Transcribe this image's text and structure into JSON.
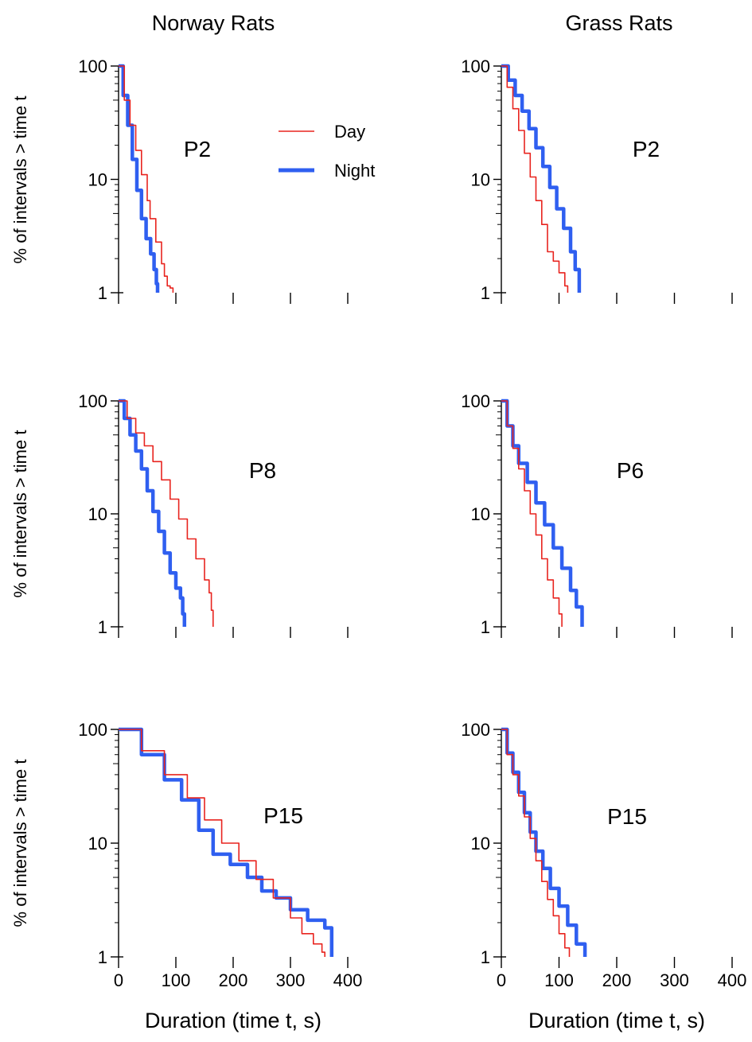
{
  "columns": [
    "Norway Rats",
    "Grass Rats"
  ],
  "legend": [
    {
      "label": "Day",
      "color": "#e8241f"
    },
    {
      "label": "Night",
      "color": "#2f5ff0"
    }
  ],
  "chart_data": [
    {
      "type": "line",
      "column": "Norway Rats",
      "title": "P2",
      "ylabel": "% of intervals > time t",
      "xlabel": "",
      "xlim": [
        0,
        400
      ],
      "ylim": [
        1,
        100
      ],
      "yscale": "log",
      "yticks": [
        "1",
        "10",
        "100"
      ],
      "xticks": [],
      "series": [
        {
          "name": "Day",
          "x": [
            0,
            10,
            20,
            30,
            40,
            50,
            55,
            65,
            75,
            80,
            85,
            90,
            95
          ],
          "y": [
            100,
            50,
            30,
            18,
            11,
            6.5,
            4.5,
            2.8,
            1.8,
            1.4,
            1.15,
            1.1,
            1.0
          ]
        },
        {
          "name": "Night",
          "x": [
            0,
            8,
            16,
            24,
            32,
            40,
            48,
            56,
            62,
            66,
            68
          ],
          "y": [
            100,
            55,
            30,
            15,
            8,
            4.5,
            3,
            2.2,
            1.6,
            1.2,
            1.0
          ]
        }
      ]
    },
    {
      "type": "line",
      "column": "Grass Rats",
      "title": "P2",
      "ylabel": "",
      "xlabel": "",
      "xlim": [
        0,
        400
      ],
      "ylim": [
        1,
        100
      ],
      "yscale": "log",
      "yticks": [
        "1",
        "10",
        "100"
      ],
      "xticks": [],
      "series": [
        {
          "name": "Day",
          "x": [
            0,
            10,
            20,
            30,
            40,
            50,
            60,
            70,
            80,
            90,
            100,
            110,
            115
          ],
          "y": [
            100,
            65,
            42,
            27,
            17,
            10.5,
            6.5,
            4,
            2.3,
            1.9,
            1.5,
            1.15,
            1.0
          ]
        },
        {
          "name": "Night",
          "x": [
            0,
            12,
            24,
            36,
            48,
            60,
            72,
            84,
            96,
            108,
            120,
            128,
            135
          ],
          "y": [
            100,
            75,
            55,
            40,
            28,
            19,
            13,
            8.5,
            5.5,
            3.7,
            2.3,
            1.6,
            1.0
          ]
        }
      ]
    },
    {
      "type": "line",
      "column": "Norway Rats",
      "title": "P8",
      "ylabel": "% of intervals > time t",
      "xlabel": "",
      "xlim": [
        0,
        400
      ],
      "ylim": [
        1,
        100
      ],
      "yscale": "log",
      "yticks": [
        "1",
        "10",
        "100"
      ],
      "xticks": [],
      "series": [
        {
          "name": "Day",
          "x": [
            0,
            15,
            30,
            45,
            60,
            75,
            90,
            105,
            120,
            135,
            150,
            158,
            162,
            165
          ],
          "y": [
            100,
            70,
            52,
            40,
            29,
            20,
            13.5,
            9,
            6,
            4,
            2.6,
            2,
            1.4,
            1.0
          ]
        },
        {
          "name": "Night",
          "x": [
            0,
            10,
            20,
            30,
            40,
            50,
            60,
            70,
            80,
            90,
            100,
            108,
            112,
            115
          ],
          "y": [
            100,
            70,
            50,
            36,
            25,
            16,
            10.5,
            7,
            4.5,
            3,
            2.2,
            1.8,
            1.3,
            1.0
          ]
        }
      ]
    },
    {
      "type": "line",
      "column": "Grass Rats",
      "title": "P6",
      "ylabel": "",
      "xlabel": "",
      "xlim": [
        0,
        400
      ],
      "ylim": [
        1,
        100
      ],
      "yscale": "log",
      "yticks": [
        "1",
        "10",
        "100"
      ],
      "xticks": [],
      "series": [
        {
          "name": "Day",
          "x": [
            0,
            10,
            20,
            30,
            40,
            50,
            60,
            70,
            80,
            90,
            100,
            105
          ],
          "y": [
            100,
            60,
            38,
            25,
            16,
            10,
            6.5,
            4,
            2.6,
            1.8,
            1.3,
            1.0
          ]
        },
        {
          "name": "Night",
          "x": [
            0,
            10,
            20,
            30,
            45,
            60,
            75,
            90,
            105,
            120,
            130,
            140
          ],
          "y": [
            100,
            60,
            40,
            28,
            19,
            12.5,
            8,
            5,
            3.3,
            2.1,
            1.5,
            1.0
          ]
        }
      ]
    },
    {
      "type": "line",
      "column": "Norway Rats",
      "title": "P15",
      "ylabel": "% of intervals > time t",
      "xlabel": "Duration (time t, s)",
      "xlim": [
        0,
        400
      ],
      "ylim": [
        1,
        100
      ],
      "yscale": "log",
      "yticks": [
        "1",
        "10",
        "100"
      ],
      "xticks": [
        "0",
        "100",
        "200",
        "300",
        "400"
      ],
      "series": [
        {
          "name": "Day",
          "x": [
            0,
            40,
            80,
            120,
            150,
            180,
            210,
            240,
            270,
            300,
            320,
            340,
            355,
            360
          ],
          "y": [
            100,
            65,
            40,
            25,
            16,
            10,
            7,
            4.8,
            3.3,
            2.2,
            1.6,
            1.3,
            1.1,
            1.0
          ]
        },
        {
          "name": "Night",
          "x": [
            0,
            40,
            80,
            110,
            140,
            165,
            195,
            225,
            250,
            275,
            300,
            330,
            360,
            372
          ],
          "y": [
            100,
            60,
            36,
            24,
            13,
            8,
            6.5,
            5,
            3.8,
            3.3,
            2.6,
            2.1,
            1.8,
            1.0
          ]
        }
      ]
    },
    {
      "type": "line",
      "column": "Grass Rats",
      "title": "P15",
      "ylabel": "",
      "xlabel": "Duration (time t, s)",
      "xlim": [
        0,
        400
      ],
      "ylim": [
        1,
        100
      ],
      "yscale": "log",
      "yticks": [
        "1",
        "10",
        "100"
      ],
      "xticks": [
        "0",
        "100",
        "200",
        "300",
        "400"
      ],
      "series": [
        {
          "name": "Day",
          "x": [
            0,
            10,
            20,
            30,
            40,
            50,
            60,
            70,
            80,
            90,
            100,
            110,
            118
          ],
          "y": [
            100,
            60,
            40,
            26,
            17,
            11,
            7,
            4.6,
            3.2,
            2.3,
            1.6,
            1.2,
            1.0
          ]
        },
        {
          "name": "Night",
          "x": [
            0,
            10,
            20,
            30,
            40,
            50,
            60,
            72,
            85,
            100,
            115,
            130,
            145
          ],
          "y": [
            100,
            62,
            42,
            28,
            18.5,
            12.5,
            8.5,
            6,
            4,
            2.8,
            1.9,
            1.3,
            1.0
          ]
        }
      ]
    }
  ]
}
